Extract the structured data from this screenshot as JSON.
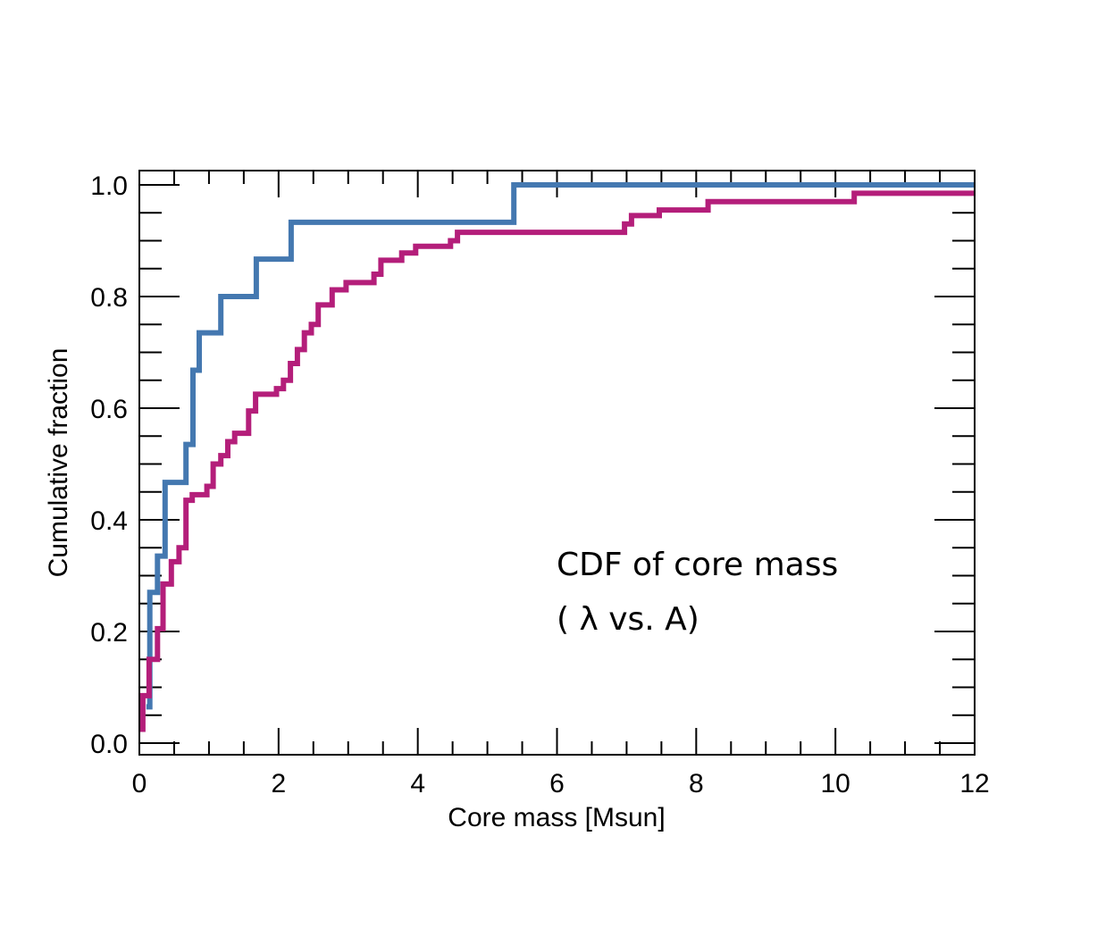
{
  "chart_data": {
    "type": "line",
    "step": true,
    "xlabel": "Core mass [Msun]",
    "ylabel": "Cumulative fraction",
    "xlim": [
      0,
      12
    ],
    "ylim": [
      0,
      1.02
    ],
    "x_ticks": [
      "0",
      "2",
      "4",
      "6",
      "8",
      "10",
      "12"
    ],
    "y_ticks": [
      "0.0",
      "0.2",
      "0.4",
      "0.6",
      "0.8",
      "1.0"
    ],
    "annotations": [
      "CDF of core mass",
      "( λ vs. A)"
    ],
    "grid": false,
    "series": [
      {
        "name": "blue",
        "color": "#4478b0",
        "points": [
          [
            0.1,
            0.065
          ],
          [
            0.15,
            0.065
          ],
          [
            0.15,
            0.27
          ],
          [
            0.26,
            0.27
          ],
          [
            0.26,
            0.335
          ],
          [
            0.37,
            0.335
          ],
          [
            0.37,
            0.467
          ],
          [
            0.67,
            0.467
          ],
          [
            0.67,
            0.535
          ],
          [
            0.77,
            0.535
          ],
          [
            0.77,
            0.668
          ],
          [
            0.86,
            0.668
          ],
          [
            0.86,
            0.735
          ],
          [
            1.17,
            0.735
          ],
          [
            1.17,
            0.8
          ],
          [
            1.68,
            0.8
          ],
          [
            1.68,
            0.867
          ],
          [
            2.18,
            0.867
          ],
          [
            2.18,
            0.933
          ],
          [
            5.38,
            0.933
          ],
          [
            5.38,
            1.0
          ],
          [
            12.0,
            1.0
          ]
        ]
      },
      {
        "name": "magenta",
        "color": "#b41e7a",
        "points": [
          [
            0.05,
            0.02
          ],
          [
            0.05,
            0.085
          ],
          [
            0.14,
            0.085
          ],
          [
            0.14,
            0.15
          ],
          [
            0.26,
            0.15
          ],
          [
            0.26,
            0.205
          ],
          [
            0.34,
            0.205
          ],
          [
            0.34,
            0.285
          ],
          [
            0.46,
            0.285
          ],
          [
            0.46,
            0.325
          ],
          [
            0.57,
            0.325
          ],
          [
            0.57,
            0.35
          ],
          [
            0.67,
            0.35
          ],
          [
            0.67,
            0.435
          ],
          [
            0.76,
            0.435
          ],
          [
            0.76,
            0.445
          ],
          [
            0.97,
            0.445
          ],
          [
            0.97,
            0.46
          ],
          [
            1.06,
            0.46
          ],
          [
            1.06,
            0.5
          ],
          [
            1.17,
            0.5
          ],
          [
            1.17,
            0.515
          ],
          [
            1.27,
            0.515
          ],
          [
            1.27,
            0.54
          ],
          [
            1.37,
            0.54
          ],
          [
            1.37,
            0.555
          ],
          [
            1.57,
            0.555
          ],
          [
            1.57,
            0.595
          ],
          [
            1.67,
            0.595
          ],
          [
            1.67,
            0.625
          ],
          [
            1.97,
            0.625
          ],
          [
            1.97,
            0.635
          ],
          [
            2.07,
            0.635
          ],
          [
            2.07,
            0.65
          ],
          [
            2.17,
            0.65
          ],
          [
            2.17,
            0.68
          ],
          [
            2.27,
            0.68
          ],
          [
            2.27,
            0.705
          ],
          [
            2.37,
            0.705
          ],
          [
            2.37,
            0.735
          ],
          [
            2.47,
            0.735
          ],
          [
            2.47,
            0.75
          ],
          [
            2.57,
            0.75
          ],
          [
            2.57,
            0.785
          ],
          [
            2.77,
            0.785
          ],
          [
            2.77,
            0.812
          ],
          [
            2.97,
            0.812
          ],
          [
            2.97,
            0.825
          ],
          [
            3.37,
            0.825
          ],
          [
            3.37,
            0.84
          ],
          [
            3.47,
            0.84
          ],
          [
            3.47,
            0.865
          ],
          [
            3.77,
            0.865
          ],
          [
            3.77,
            0.878
          ],
          [
            3.97,
            0.878
          ],
          [
            3.97,
            0.89
          ],
          [
            4.47,
            0.89
          ],
          [
            4.47,
            0.9
          ],
          [
            4.57,
            0.9
          ],
          [
            4.57,
            0.915
          ],
          [
            6.97,
            0.915
          ],
          [
            6.97,
            0.93
          ],
          [
            7.07,
            0.93
          ],
          [
            7.07,
            0.945
          ],
          [
            7.47,
            0.945
          ],
          [
            7.47,
            0.955
          ],
          [
            8.17,
            0.955
          ],
          [
            8.17,
            0.97
          ],
          [
            10.27,
            0.97
          ],
          [
            10.27,
            0.985
          ],
          [
            12.0,
            0.985
          ]
        ]
      }
    ]
  }
}
